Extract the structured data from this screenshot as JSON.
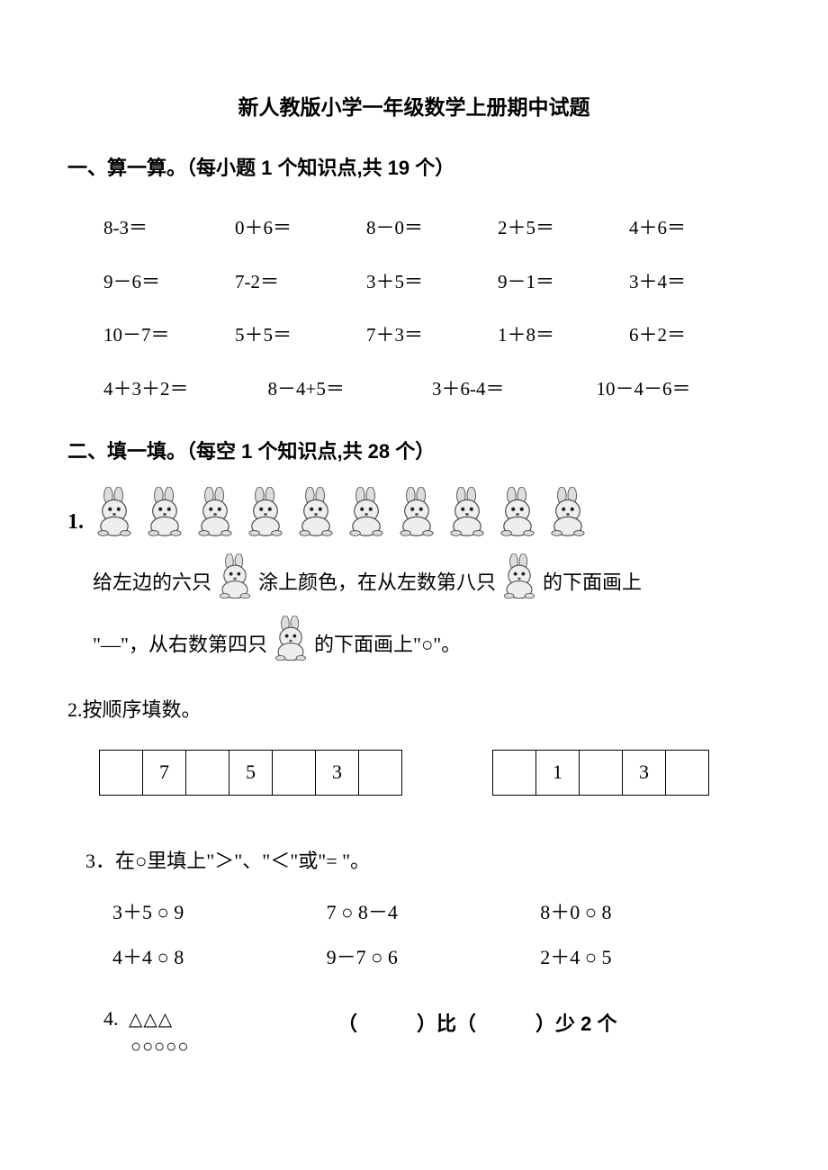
{
  "title": "新人教版小学一年级数学上册期中试题",
  "section1": {
    "header": "一、算一算。（每小题 1 个知识点,共 19 个）",
    "rows5": [
      [
        "8-3＝",
        "0＋6＝",
        "8－0＝",
        "2＋5＝",
        "4＋6＝"
      ],
      [
        "9－6＝",
        "7-2＝",
        "3＋5＝",
        "9－1＝",
        "3＋4＝"
      ],
      [
        "10－7＝",
        "5＋5＝",
        "7＋3＝",
        "1＋8＝",
        "6＋2＝"
      ]
    ],
    "rows4": [
      [
        "4＋3＋2＝",
        "8－4+5＝",
        "3＋6-4＝",
        "10－4－6＝"
      ]
    ]
  },
  "section2": {
    "header": "二、填一填。（每空 1 个知识点,共 28 个）",
    "q1": {
      "num": "1.",
      "rabbit_count": 10,
      "line1_a": "给左边的六只",
      "line1_b": "涂上颜色，在从左数第八只",
      "line1_c": "的下面画上",
      "line2_a": "\"—\"，从右数第四只",
      "line2_b": "的下面画上\"○\"。"
    },
    "q2": {
      "label": "2.按顺序填数。",
      "table1": [
        "",
        "7",
        "",
        "5",
        "",
        "3",
        ""
      ],
      "table2": [
        "",
        "1",
        "",
        "3",
        ""
      ]
    },
    "q3": {
      "label": "3．在○里填上\"＞\"、\"＜\"或\"= \"。",
      "rows": [
        [
          "3＋5 ○ 9",
          "7 ○ 8－4",
          "8＋0 ○ 8"
        ],
        [
          "4＋4 ○ 8",
          "9－7 ○ 6",
          "2＋4 ○ 5"
        ]
      ]
    },
    "q4": {
      "num": "4.",
      "triangles": "△△△",
      "circles": "○○○○○",
      "text": "（　　　）比（　　　）少 2 个"
    }
  }
}
